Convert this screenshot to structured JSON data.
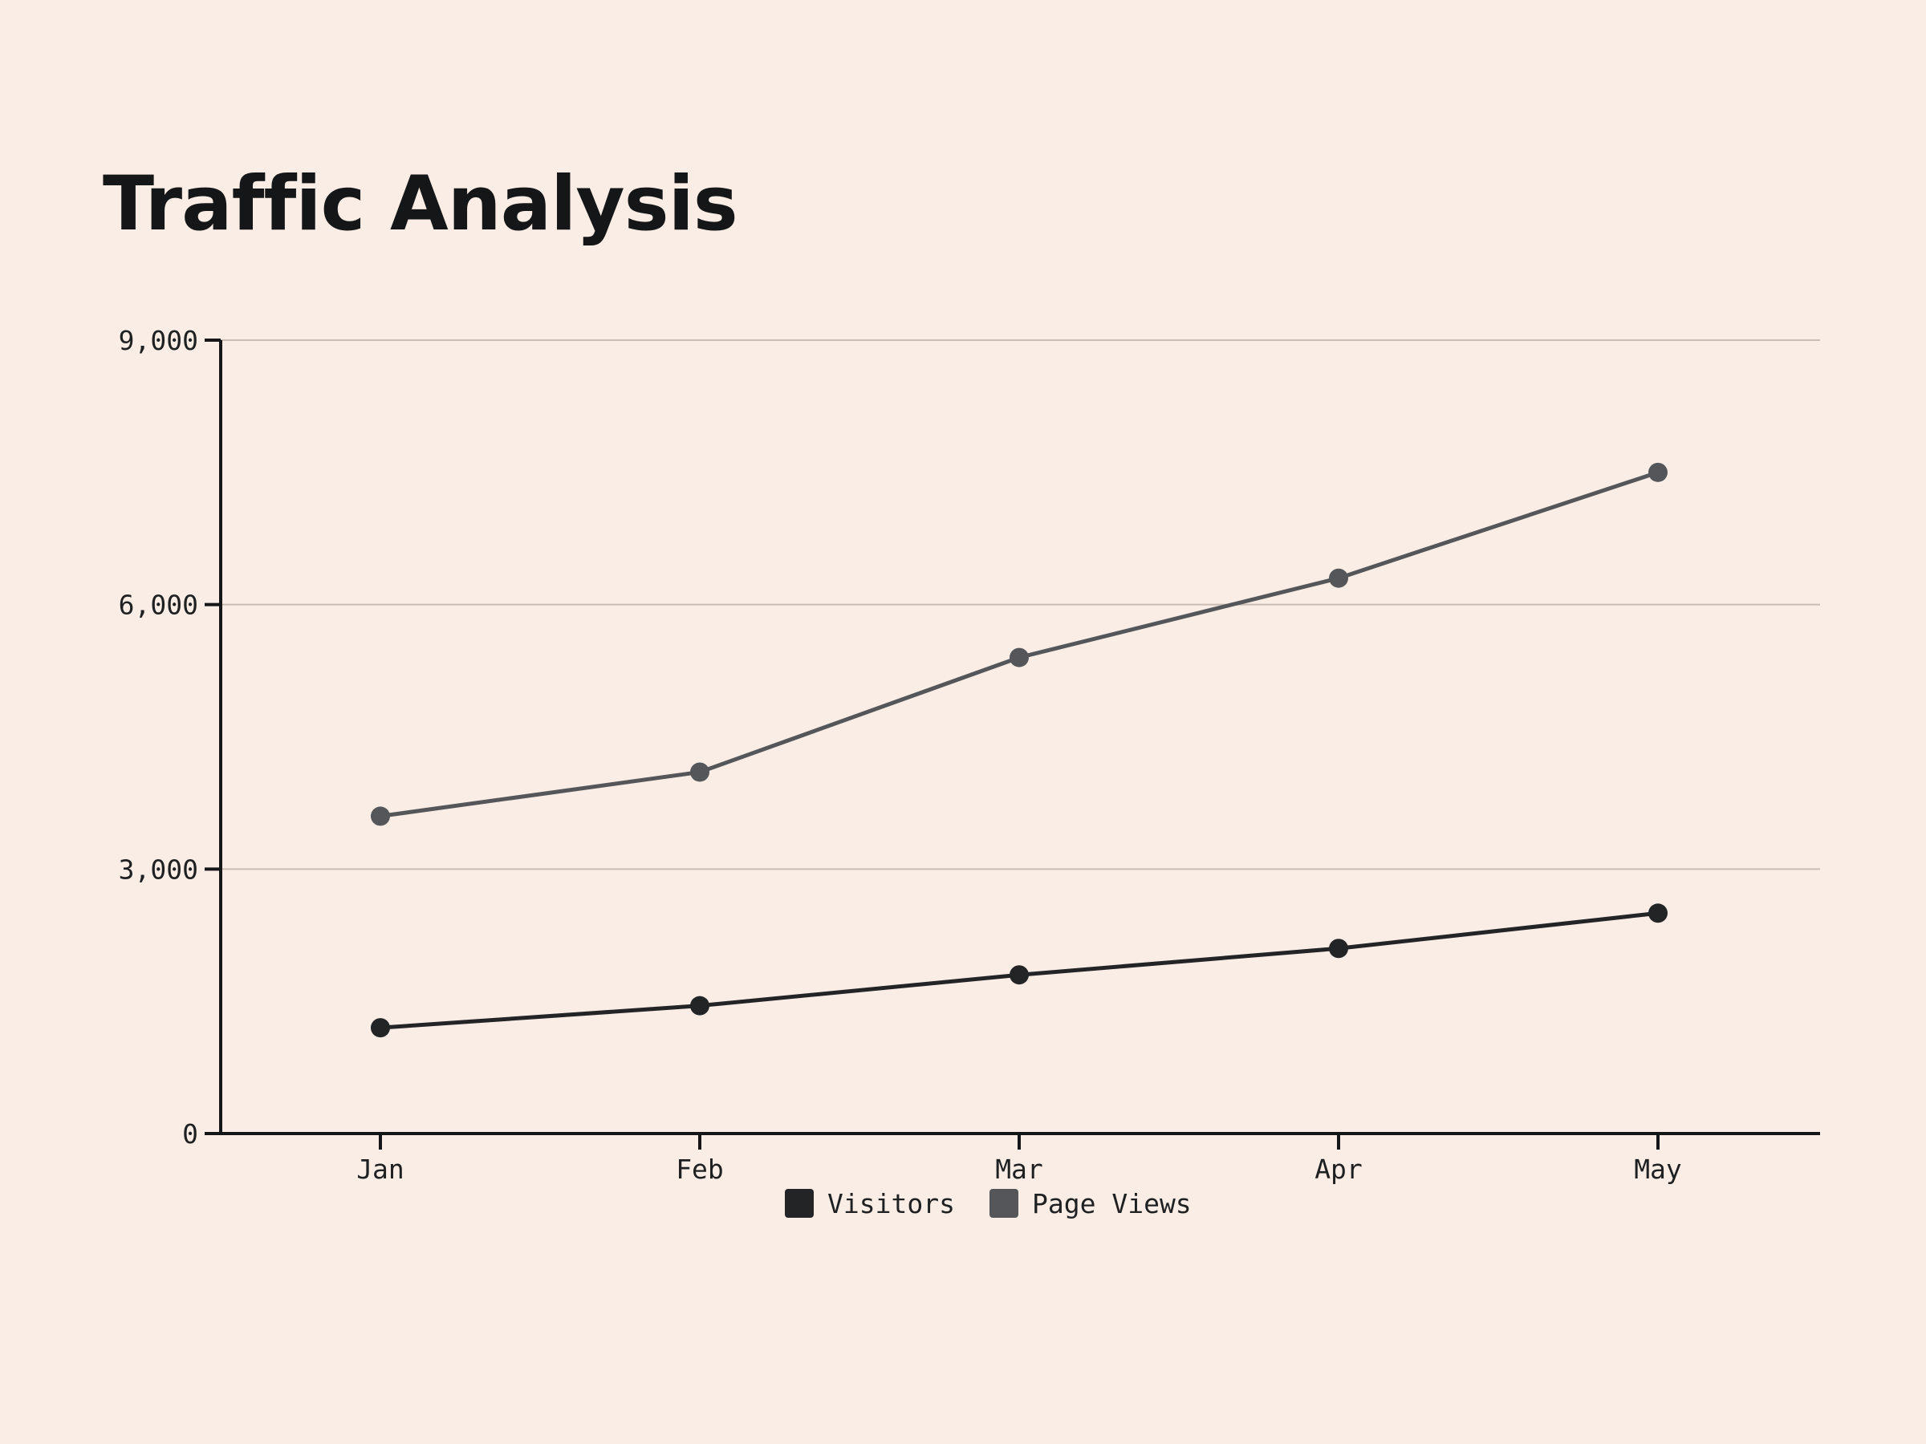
{
  "chart_data": {
    "type": "line",
    "title": "Traffic Analysis",
    "categories": [
      "Jan",
      "Feb",
      "Mar",
      "Apr",
      "May"
    ],
    "series": [
      {
        "name": "Visitors",
        "color": "#232426",
        "values": [
          1200,
          1450,
          1800,
          2100,
          2500
        ]
      },
      {
        "name": "Page Views",
        "color": "#54565a",
        "values": [
          3600,
          4100,
          5400,
          6300,
          7500
        ]
      }
    ],
    "ylim": [
      0,
      9000
    ],
    "yticks": [
      0,
      3000,
      6000,
      9000
    ],
    "ytick_labels": [
      "0",
      "3,000",
      "6,000",
      "9,000"
    ],
    "grid": true,
    "legend_position": "bottom-center",
    "colors": {
      "background": "#f9ede5",
      "axis": "#151617",
      "grid": "#c9bcb3",
      "text": "#1f2022"
    }
  }
}
